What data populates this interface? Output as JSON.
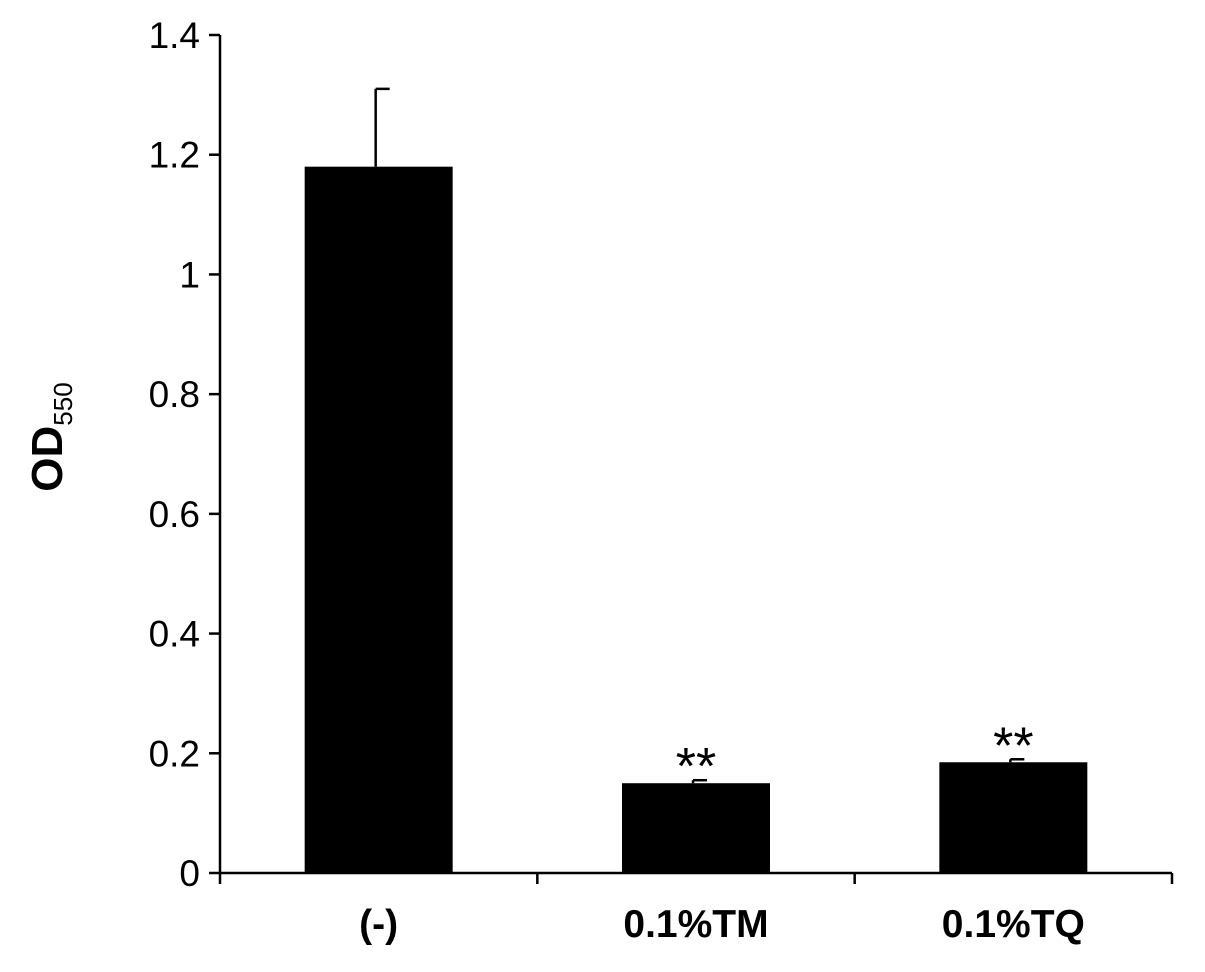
{
  "chart_data": {
    "type": "bar",
    "categories": [
      "(-)",
      "0.1%TM",
      "0.1%TQ"
    ],
    "values": [
      1.18,
      0.15,
      0.185
    ],
    "errors": [
      0.13,
      0.005,
      0.005
    ],
    "annotations": [
      "",
      "**",
      "**"
    ],
    "ylabel": "OD",
    "ylabel_subscript": "550",
    "xlabel": "",
    "title": "",
    "ylim": [
      0,
      1.4
    ],
    "yticks": [
      0,
      0.2,
      0.4,
      0.6,
      0.8,
      1,
      1.2,
      1.4
    ],
    "ytick_labels": [
      "0",
      "0.2",
      "0.4",
      "0.6",
      "0.8",
      "1",
      "1.2",
      "1.4"
    ],
    "bar_color": "#000000",
    "grid": false,
    "legend": "none"
  }
}
